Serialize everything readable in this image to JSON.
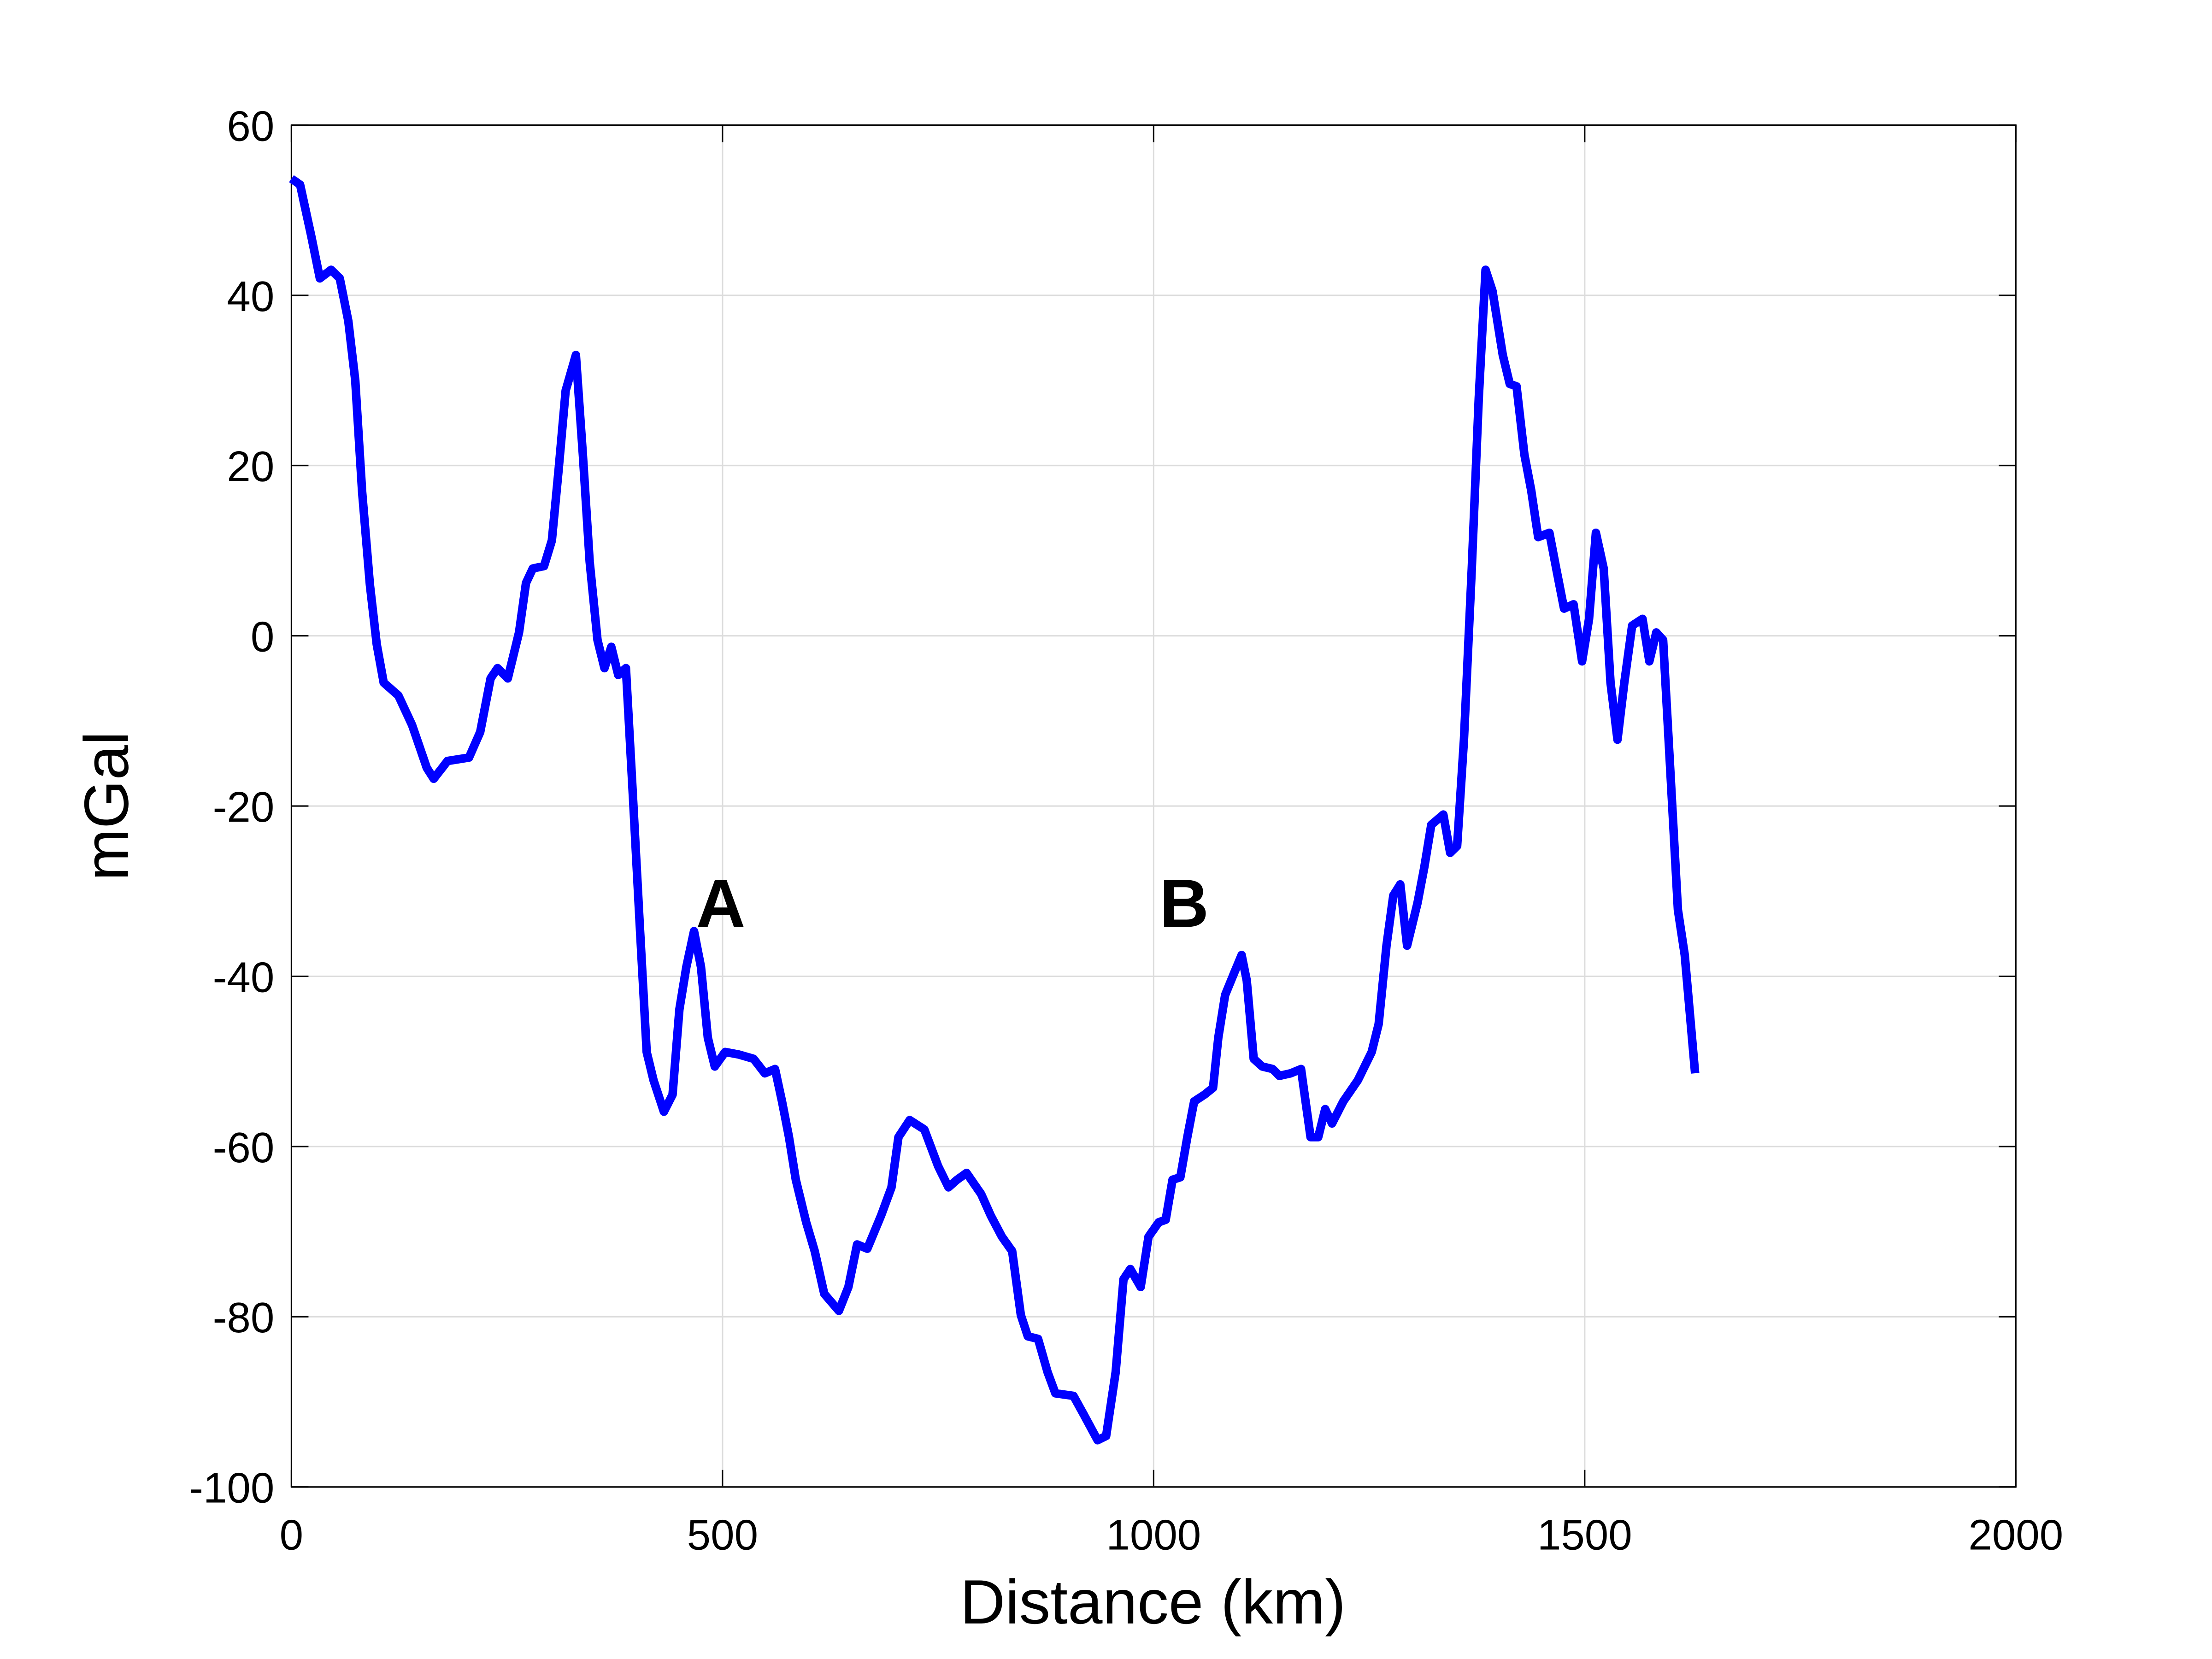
{
  "chart_data": {
    "type": "line",
    "xlabel": "Distance (km)",
    "ylabel": "mGal",
    "annotations": [
      "A",
      "B"
    ],
    "color": "#0000ff",
    "grid": true,
    "xlim": [
      0,
      2000
    ],
    "xticks": [
      0,
      500,
      1000,
      1500,
      2000
    ],
    "ylim": [
      -100,
      60
    ],
    "yticks": [
      -100,
      -80,
      -60,
      -40,
      -20,
      0,
      20,
      40,
      60
    ],
    "x": [
      0,
      10,
      23,
      33,
      46,
      56,
      66,
      74,
      82,
      91,
      99,
      107,
      124,
      140,
      157,
      165,
      181,
      206,
      219,
      231,
      239,
      251,
      264,
      272,
      280,
      293,
      302,
      310,
      318,
      330,
      338,
      346,
      355,
      363,
      371,
      379,
      388,
      396,
      404,
      412,
      420,
      432,
      442,
      450,
      458,
      467,
      475,
      483,
      491,
      503,
      519,
      536,
      549,
      561,
      569,
      577,
      585,
      597,
      607,
      618,
      635,
      646,
      656,
      668,
      684,
      696,
      704,
      717,
      734,
      750,
      762,
      772,
      783,
      800,
      811,
      824,
      836,
      846,
      854,
      866,
      877,
      886,
      907,
      919,
      935,
      945,
      956,
      965,
      973,
      985,
      994,
      1006,
      1014,
      1022,
      1031,
      1039,
      1047,
      1059,
      1069,
      1075,
      1083,
      1093,
      1102,
      1108,
      1116,
      1126,
      1138,
      1146,
      1159,
      1171,
      1182,
      1191,
      1199,
      1207,
      1220,
      1237,
      1253,
      1261,
      1270,
      1278,
      1286,
      1294,
      1306,
      1314,
      1322,
      1336,
      1344,
      1352,
      1360,
      1369,
      1377,
      1385,
      1393,
      1405,
      1413,
      1421,
      1430,
      1438,
      1446,
      1459,
      1467,
      1476,
      1487,
      1497,
      1505,
      1513,
      1522,
      1530,
      1538,
      1546,
      1555,
      1567,
      1575,
      1583,
      1591,
      1600,
      1608,
      1616,
      1628
    ],
    "values": [
      53.7,
      53,
      47,
      42,
      43,
      42,
      37,
      30,
      17,
      6,
      -1,
      -5.5,
      -7,
      -10.5,
      -15.5,
      -16.8,
      -14.7,
      -14.3,
      -11.3,
      -5,
      -3.8,
      -5,
      0.4,
      6.2,
      7.9,
      8.2,
      11.2,
      19.6,
      28.8,
      33,
      21.3,
      8.7,
      -0.5,
      -3.8,
      -1.3,
      -4.6,
      -3.8,
      -18.8,
      -33.9,
      -48.9,
      -52.2,
      -55.9,
      -53.9,
      -43.9,
      -38.9,
      -34.7,
      -38.9,
      -47.2,
      -50.6,
      -48.9,
      -49.2,
      -49.7,
      -51.4,
      -50.9,
      -54.7,
      -58.9,
      -63.9,
      -68.9,
      -72.3,
      -77.3,
      -79.3,
      -76.5,
      -71.5,
      -72,
      -68.1,
      -64.8,
      -58.9,
      -56.9,
      -58,
      -62.3,
      -64.8,
      -63.9,
      -63.1,
      -65.6,
      -68.1,
      -70.6,
      -72.3,
      -79.8,
      -82.3,
      -82.6,
      -86.5,
      -89,
      -89.3,
      -91.5,
      -94.5,
      -94,
      -86.5,
      -75.6,
      -74.4,
      -76.5,
      -70.6,
      -68.9,
      -68.6,
      -63.9,
      -63.6,
      -58.9,
      -54.7,
      -53.9,
      -53.1,
      -47.2,
      -42.2,
      -39.7,
      -37.5,
      -40.5,
      -49.7,
      -50.6,
      -50.9,
      -51.7,
      -51.4,
      -50.9,
      -58.9,
      -58.9,
      -55.6,
      -57.3,
      -54.7,
      -52.2,
      -48.9,
      -45.6,
      -36.4,
      -30.5,
      -29.2,
      -36.4,
      -31.4,
      -27.2,
      -22.2,
      -21,
      -25.5,
      -24.7,
      -12.2,
      7.9,
      27.9,
      43,
      40.5,
      33,
      29.6,
      29.3,
      21.3,
      17.1,
      11.6,
      12.1,
      7.9,
      3.2,
      3.7,
      -3,
      2,
      12.1,
      7.9,
      -5.5,
      -12.2,
      -5.5,
      1.2,
      2,
      -3,
      0.4,
      -0.5,
      -17.2,
      -32.2,
      -37.5,
      -51.4
    ]
  }
}
